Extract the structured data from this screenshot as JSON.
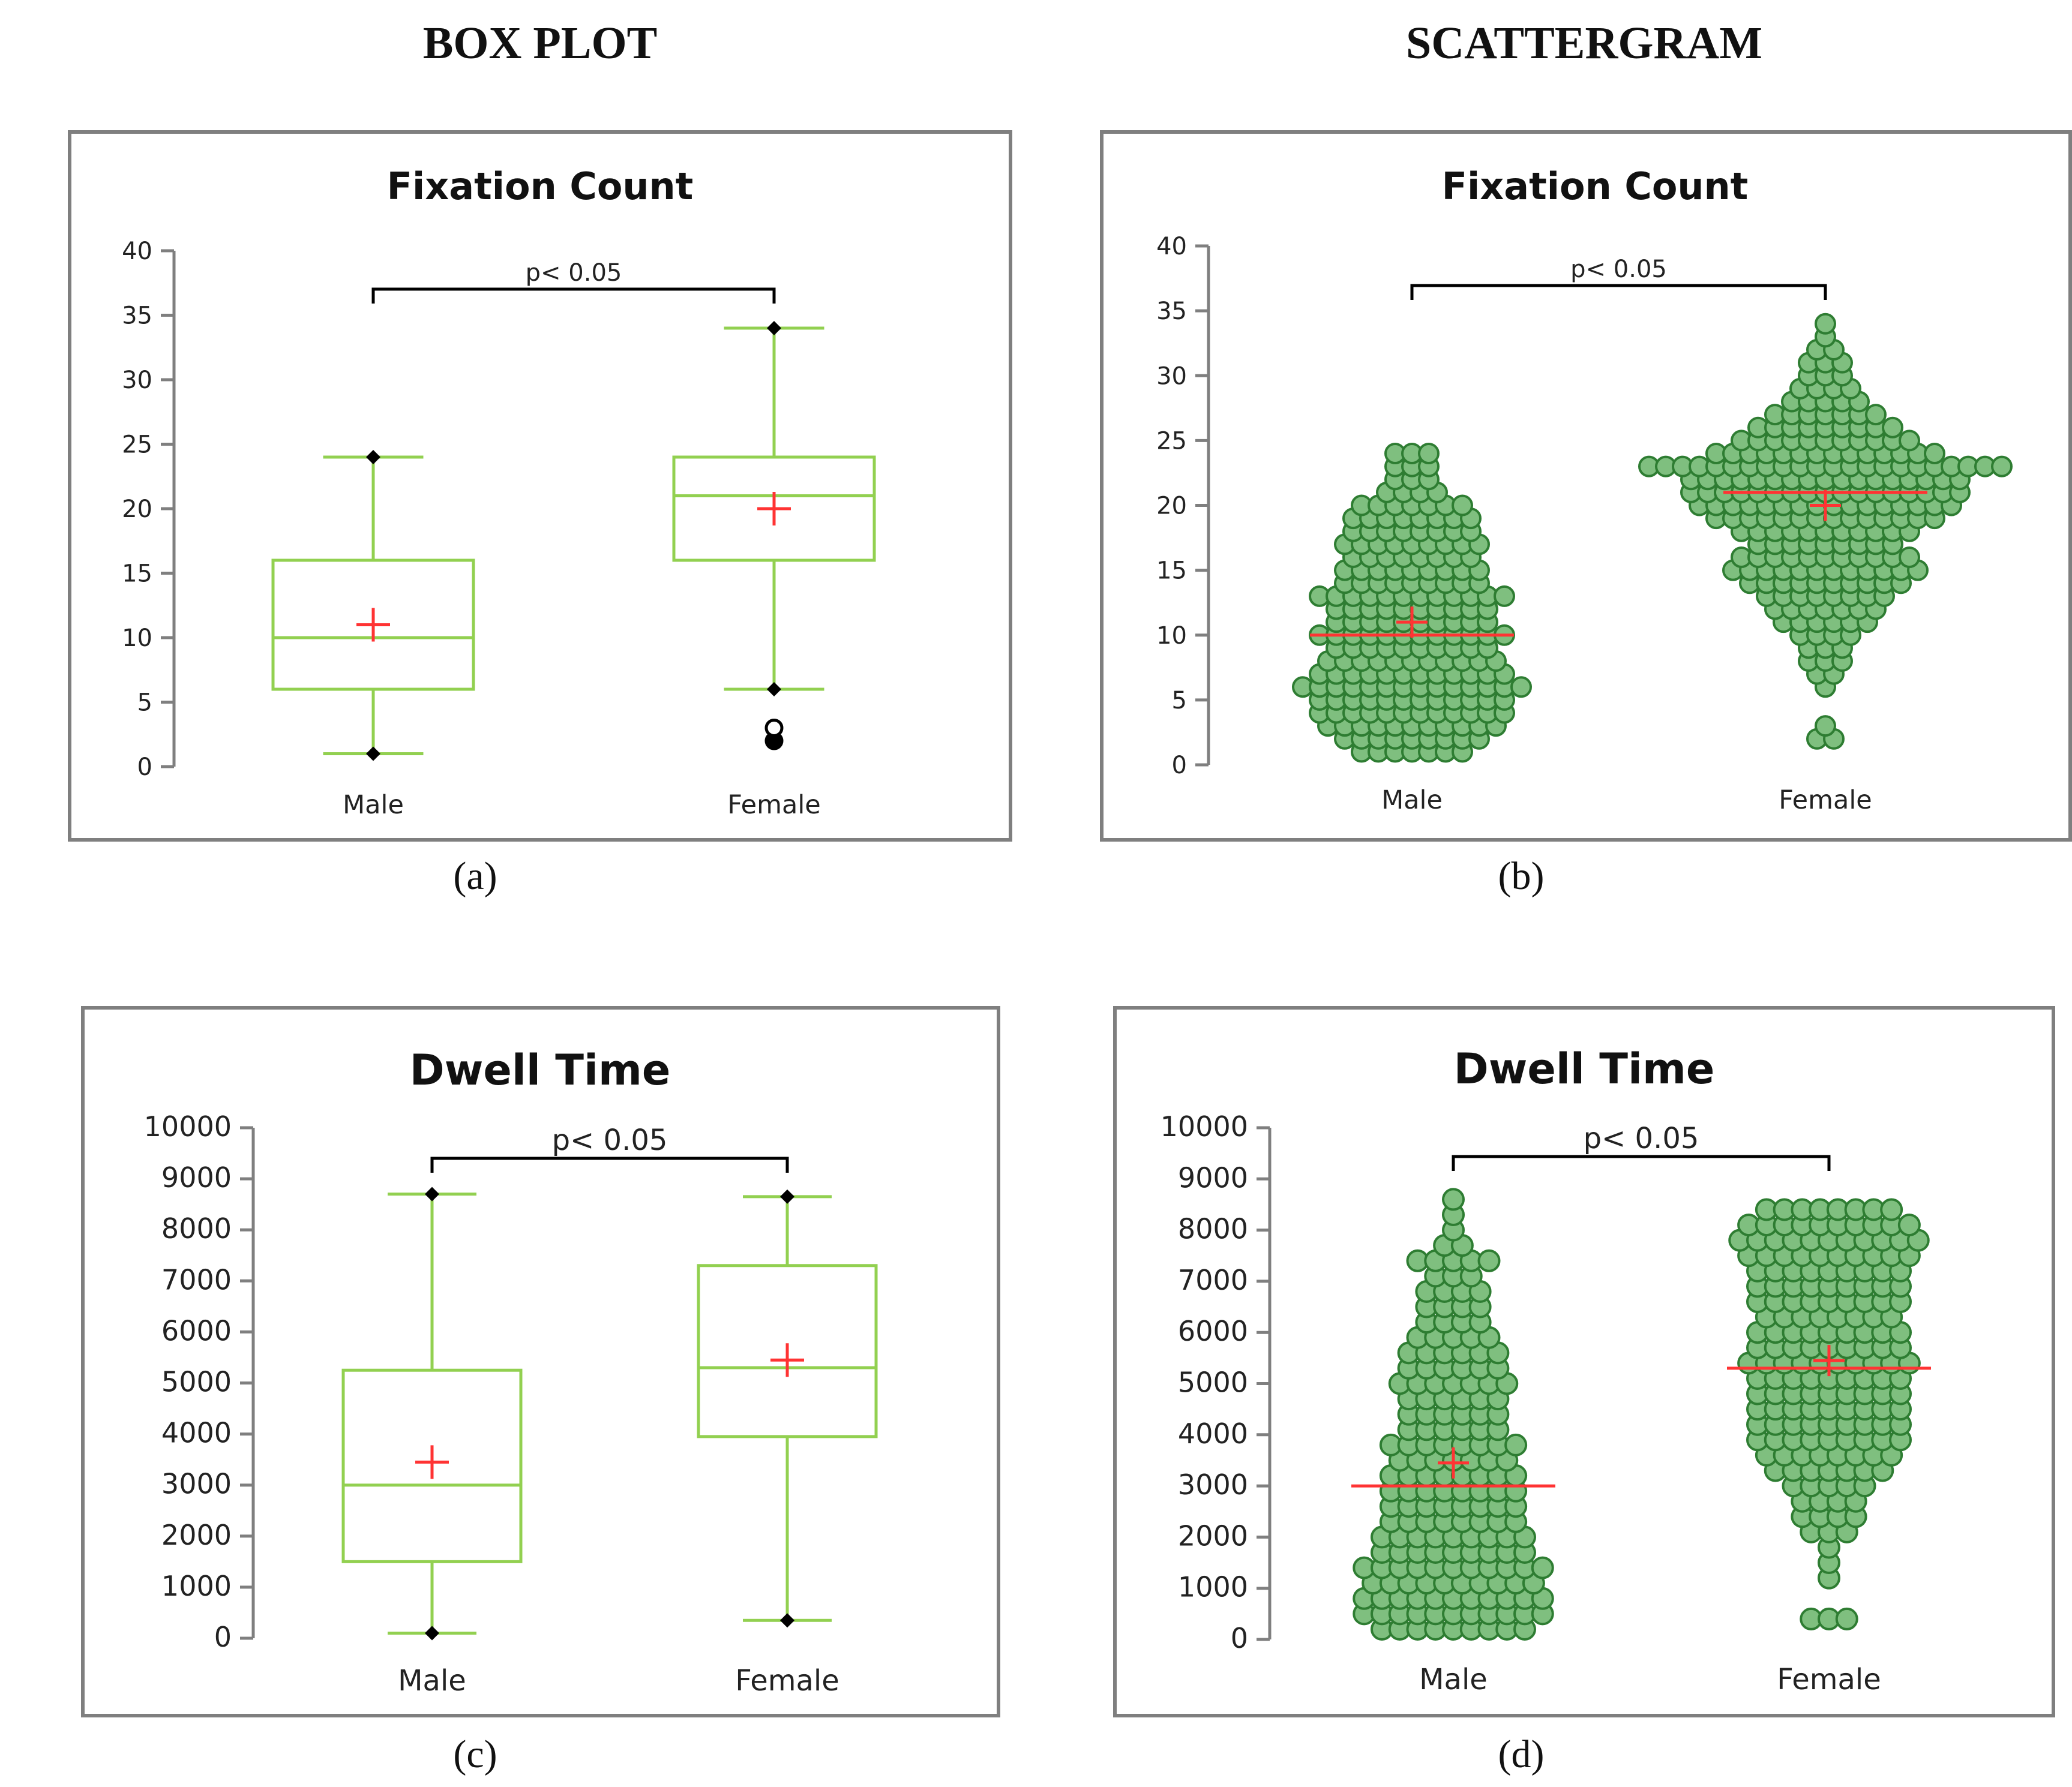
{
  "headers": {
    "left": "BOX PLOT",
    "right": "SCATTERGRAM"
  },
  "colors": {
    "box": "#92d050",
    "dot_fill": "#7fbf7f",
    "dot_stroke": "#2e7d32",
    "mean": "#ff3333",
    "frame": "#7f7f7f"
  },
  "chart_data": [
    {
      "id": "a",
      "type": "box",
      "caption": "(a)",
      "title": "Fixation Count",
      "categories": [
        "Male",
        "Female"
      ],
      "ylim": [
        0,
        40
      ],
      "yticks": [
        "0",
        "5",
        "10",
        "15",
        "20",
        "25",
        "30",
        "35",
        "40"
      ],
      "significance": "p< 0.05",
      "series": [
        {
          "name": "Male",
          "min": 1,
          "q1": 6,
          "median": 10,
          "q3": 16,
          "max": 24,
          "mean": 11,
          "outliers": []
        },
        {
          "name": "Female",
          "min": 6,
          "q1": 16,
          "median": 21,
          "q3": 24,
          "max": 34,
          "mean": 20,
          "outliers": [
            2,
            3
          ]
        }
      ]
    },
    {
      "id": "b",
      "type": "scatter",
      "caption": "(b)",
      "title": "Fixation Count",
      "categories": [
        "Male",
        "Female"
      ],
      "ylim": [
        0,
        40
      ],
      "yticks": [
        "0",
        "5",
        "10",
        "15",
        "20",
        "25",
        "30",
        "35",
        "40"
      ],
      "significance": "p< 0.05",
      "series": [
        {
          "name": "Male",
          "median": 10,
          "mean": 11,
          "counts": {
            "1": 7,
            "2": 9,
            "3": 11,
            "4": 12,
            "5": 12,
            "6": 14,
            "7": 12,
            "8": 11,
            "9": 10,
            "10": 12,
            "11": 10,
            "12": 10,
            "13": 12,
            "14": 9,
            "15": 9,
            "16": 8,
            "17": 9,
            "18": 8,
            "19": 8,
            "20": 7,
            "21": 4,
            "22": 3,
            "23": 3,
            "24": 3
          }
        },
        {
          "name": "Female",
          "median": 21,
          "mean": 20,
          "counts": {
            "2": 2,
            "3": 1,
            "6": 1,
            "7": 2,
            "8": 3,
            "9": 3,
            "10": 4,
            "11": 6,
            "12": 7,
            "13": 8,
            "14": 10,
            "15": 12,
            "16": 11,
            "17": 9,
            "18": 11,
            "19": 14,
            "20": 16,
            "21": 17,
            "22": 17,
            "23": 22,
            "24": 14,
            "25": 11,
            "26": 9,
            "27": 7,
            "28": 5,
            "29": 4,
            "30": 3,
            "31": 3,
            "32": 2,
            "33": 1,
            "34": 1
          }
        }
      ]
    },
    {
      "id": "c",
      "type": "box",
      "caption": "(c)",
      "title": "Dwell Time",
      "categories": [
        "Male",
        "Female"
      ],
      "ylim": [
        0,
        10000
      ],
      "yticks": [
        "0",
        "1000",
        "2000",
        "3000",
        "4000",
        "5000",
        "6000",
        "7000",
        "8000",
        "9000",
        "10000"
      ],
      "significance": "p< 0.05",
      "series": [
        {
          "name": "Male",
          "min": 100,
          "q1": 1500,
          "median": 3000,
          "q3": 5250,
          "max": 8700,
          "mean": 3450,
          "outliers": []
        },
        {
          "name": "Female",
          "min": 350,
          "q1": 3950,
          "median": 5300,
          "q3": 7300,
          "max": 8650,
          "mean": 5450,
          "outliers": []
        }
      ]
    },
    {
      "id": "d",
      "type": "scatter",
      "caption": "(d)",
      "title": "Dwell Time",
      "categories": [
        "Male",
        "Female"
      ],
      "ylim": [
        0,
        10000
      ],
      "yticks": [
        "0",
        "1000",
        "2000",
        "3000",
        "4000",
        "5000",
        "6000",
        "7000",
        "8000",
        "9000",
        "10000"
      ],
      "significance": "p< 0.05",
      "series": [
        {
          "name": "Male",
          "median": 3000,
          "mean": 3450,
          "counts": {
            "200": 9,
            "500": 11,
            "800": 11,
            "1100": 10,
            "1400": 11,
            "1700": 9,
            "2000": 9,
            "2300": 8,
            "2600": 8,
            "2900": 8,
            "3200": 8,
            "3500": 7,
            "3800": 8,
            "4100": 6,
            "4400": 6,
            "4700": 6,
            "5000": 7,
            "5300": 6,
            "5600": 6,
            "5900": 5,
            "6200": 4,
            "6500": 4,
            "6800": 4,
            "7100": 3,
            "7400": 5,
            "7700": 2,
            "8000": 1,
            "8300": 1,
            "8600": 1
          }
        },
        {
          "name": "Female",
          "median": 5300,
          "mean": 5450,
          "counts": {
            "400": 3,
            "1200": 1,
            "1500": 1,
            "1800": 1,
            "2100": 3,
            "2400": 4,
            "2700": 4,
            "3000": 5,
            "3300": 7,
            "3600": 8,
            "3900": 9,
            "4200": 9,
            "4500": 9,
            "4800": 9,
            "5100": 9,
            "5400": 10,
            "5700": 9,
            "6000": 9,
            "6300": 8,
            "6600": 9,
            "6900": 9,
            "7200": 9,
            "7500": 10,
            "7800": 11,
            "8100": 10,
            "8400": 8
          }
        }
      ]
    }
  ]
}
